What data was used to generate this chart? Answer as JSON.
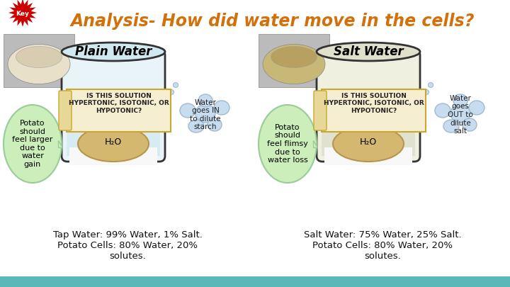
{
  "title": "Analysis- How did water move in the cells?",
  "title_color": "#D4700A",
  "bg_color": "#FFFFFF",
  "bottom_bar_color": "#5BB8B8",
  "plain_bottom": "Tap Water: 99% Water, 1% Salt.\nPotato Cells: 80% Water, 20%\nsolutes.",
  "salt_bottom": "Salt Water: 75% Water, 25% Salt.\nPotato Cells: 80% Water, 20%\nsolutes.",
  "plain_water_label": "Plain Water",
  "salt_water_label": "Salt Water",
  "plain_bubble_left": "Potato\nshould\nfeel larger\ndue to\nwater\ngain",
  "salt_bubble_left": "Potato\nshould\nfeel flimsy\ndue to\nwater loss",
  "scroll_text": "IS THIS SOLUTION\nHYPERTONIC, ISOTONIC, OR\nHYPOTONIC?",
  "plain_cloud_text": "Water\ngoes IN\nto dilute\nstarch",
  "salt_cloud_text": "Water\ngoes\nOUT to\ndilute\nsalt",
  "h2o": "H₂O",
  "cloud_color": "#C8DCF0",
  "cloud_ec": "#A0BAD0",
  "bubble_color": "#CCEEBB",
  "bubble_ec": "#99CC99",
  "scroll_color": "#F5EED0",
  "scroll_ec": "#C8A830",
  "scroll_curl_color": "#E8D898",
  "jar_plain_color": "#E8F4F8",
  "jar_salt_color": "#F0F0E0",
  "jar_top_plain": "#D0E8F0",
  "jar_top_salt": "#E0E0CC",
  "water_plain_color": "#D0E8F0",
  "water_salt_color": "#DCDCC8",
  "potato_color": "#D4B870",
  "potato_ec": "#B8954A"
}
